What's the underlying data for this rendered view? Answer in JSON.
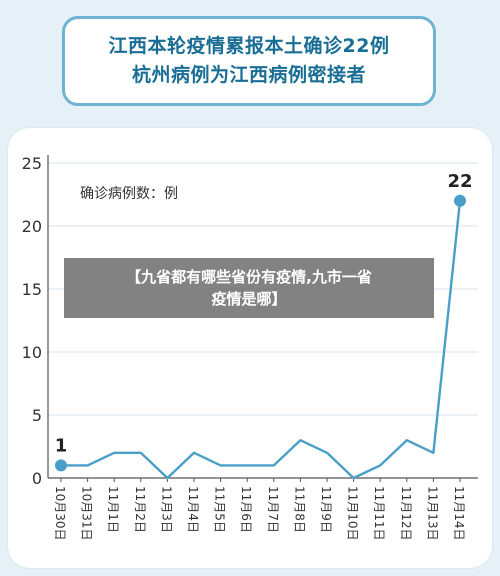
{
  "title": {
    "line1": "江西本轮疫情累报本土确诊22例",
    "line2": "杭州病例为江西病例密接者"
  },
  "overlay_text": {
    "line1": "【九省都有哪些省份有疫情,九市一省",
    "line2": "疫情是哪】"
  },
  "colors": {
    "line": "#4a9fc8",
    "title_text": "#1a6e95",
    "grid": "#d4e6ef",
    "axis": "#555555"
  },
  "chart_data": {
    "type": "line",
    "title": "",
    "ylabel": "确诊病例数：例",
    "xlabel": "",
    "ylim": [
      0,
      25
    ],
    "yticks": [
      0,
      5,
      10,
      15,
      20,
      25
    ],
    "grid": true,
    "categories": [
      "10月30日",
      "10月31日",
      "11月1日",
      "11月2日",
      "11月3日",
      "11月4日",
      "11月5日",
      "11月6日",
      "11月7日",
      "11月8日",
      "11月9日",
      "11月10日",
      "11月11日",
      "11月12日",
      "11月13日",
      "11月14日"
    ],
    "values": [
      1,
      1,
      2,
      2,
      0,
      2,
      1,
      1,
      1,
      3,
      2,
      0,
      1,
      3,
      2,
      22
    ],
    "data_labels": [
      {
        "index": 0,
        "text": "1"
      },
      {
        "index": 15,
        "text": "22"
      }
    ]
  }
}
